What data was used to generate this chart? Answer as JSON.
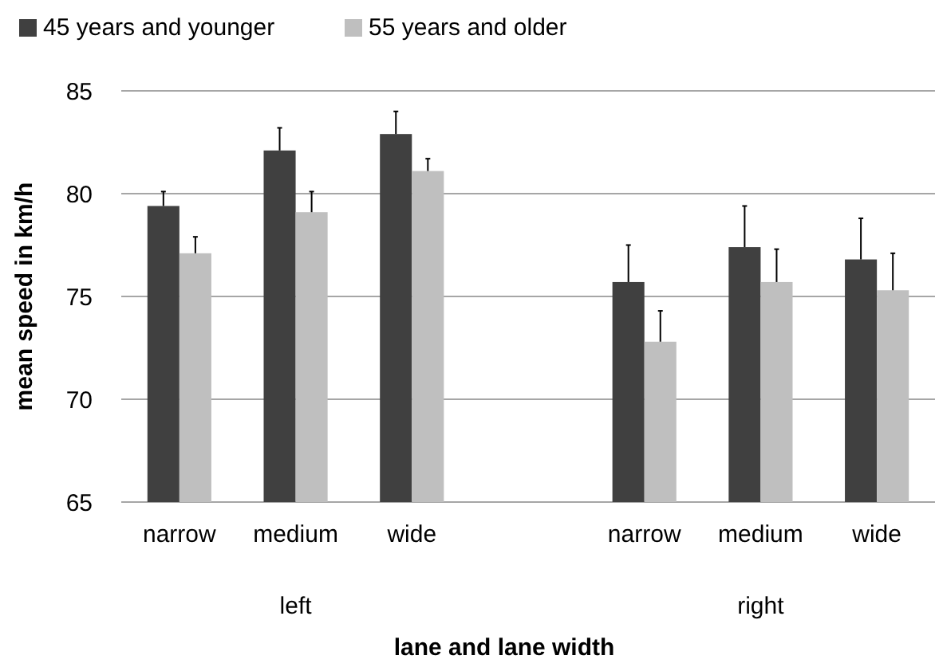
{
  "chart_data": {
    "type": "bar",
    "xlabel": "lane and lane width",
    "ylabel": "mean speed in km/h",
    "categories": [
      "narrow",
      "medium",
      "wide",
      null,
      "narrow",
      "medium",
      "wide"
    ],
    "series": [
      {
        "name": "45 years and younger",
        "color": "#404040",
        "values": [
          79.4,
          82.1,
          82.9,
          null,
          75.7,
          77.4,
          76.8
        ],
        "errors": [
          [
            79.4,
            80.1
          ],
          [
            82.1,
            83.2
          ],
          [
            82.9,
            84.0
          ],
          null,
          [
            75.7,
            77.5
          ],
          [
            77.4,
            79.4
          ],
          [
            76.8,
            78.8
          ]
        ]
      },
      {
        "name": "55 years and older",
        "color": "#bfbfbf",
        "values": [
          77.1,
          79.1,
          81.1,
          null,
          72.8,
          75.7,
          75.3
        ],
        "errors": [
          [
            77.1,
            77.9
          ],
          [
            79.1,
            80.1
          ],
          [
            81.1,
            81.7
          ],
          null,
          [
            72.8,
            74.3
          ],
          [
            75.7,
            77.3
          ],
          [
            75.3,
            77.1
          ]
        ]
      }
    ],
    "annotations": [
      "left",
      "right"
    ],
    "ylim": [
      65,
      85
    ],
    "yticks": [
      65,
      70,
      75,
      80,
      85
    ],
    "grid": "y",
    "legend": "top left"
  }
}
